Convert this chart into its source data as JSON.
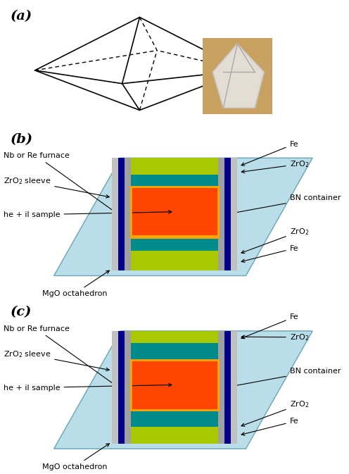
{
  "title_a": "(a)",
  "title_b": "(b)",
  "title_c": "(c)",
  "bg_color": "#ffffff",
  "mgo_color": "#add8e6",
  "fe_color": "#a8c800",
  "zro2_color": "#008080",
  "nb_re_color": "#00008b",
  "bn_color": "#808080",
  "sample_color": "#ff4500",
  "sample_border_color": "#ffa500",
  "zro2_sleeve_color": "#808080",
  "label_fontsize": 8,
  "panel_label_fontsize": 14
}
